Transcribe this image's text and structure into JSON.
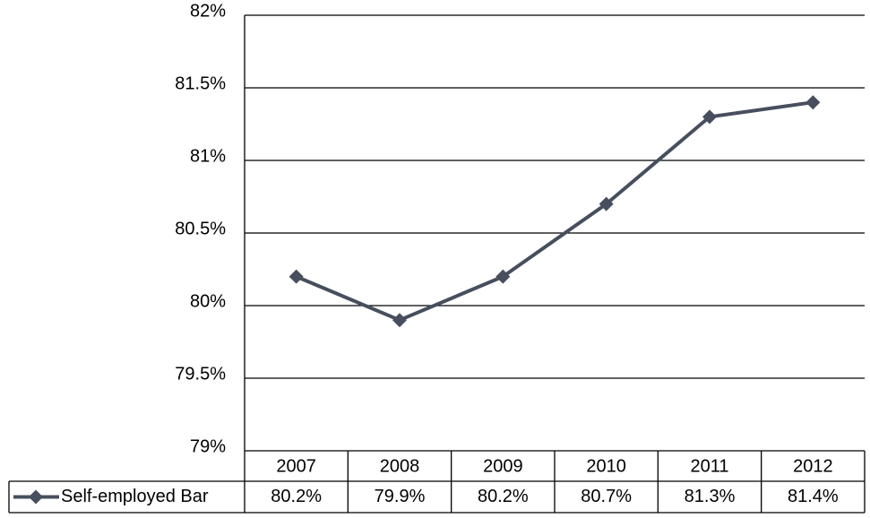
{
  "chart_data": {
    "type": "line",
    "categories": [
      "2007",
      "2008",
      "2009",
      "2010",
      "2011",
      "2012"
    ],
    "series": [
      {
        "name": "Self-employed Bar",
        "color": "#474f5e",
        "values": [
          80.2,
          79.9,
          80.2,
          80.7,
          81.3,
          81.4
        ],
        "value_labels": [
          "80.2%",
          "79.9%",
          "80.2%",
          "80.7%",
          "81.3%",
          "81.4%"
        ]
      }
    ],
    "ylim": [
      79,
      82
    ],
    "yticks": [
      {
        "value": 79,
        "label": "79%"
      },
      {
        "value": 79.5,
        "label": "79.5%"
      },
      {
        "value": 80,
        "label": "80%"
      },
      {
        "value": 80.5,
        "label": "80.5%"
      },
      {
        "value": 81,
        "label": "81%"
      },
      {
        "value": 81.5,
        "label": "81.5%"
      },
      {
        "value": 82,
        "label": "82%"
      }
    ],
    "grid": true
  }
}
